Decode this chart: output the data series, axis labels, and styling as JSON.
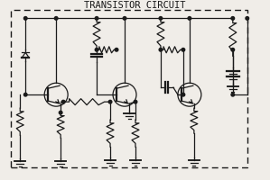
{
  "title": "TRANSISTOR CIRCUIT",
  "title_fontsize": 7.5,
  "bg_color": "#f0ede8",
  "line_color": "#1a1a1a",
  "figsize": [
    2.99,
    2.01
  ],
  "dpi": 100
}
